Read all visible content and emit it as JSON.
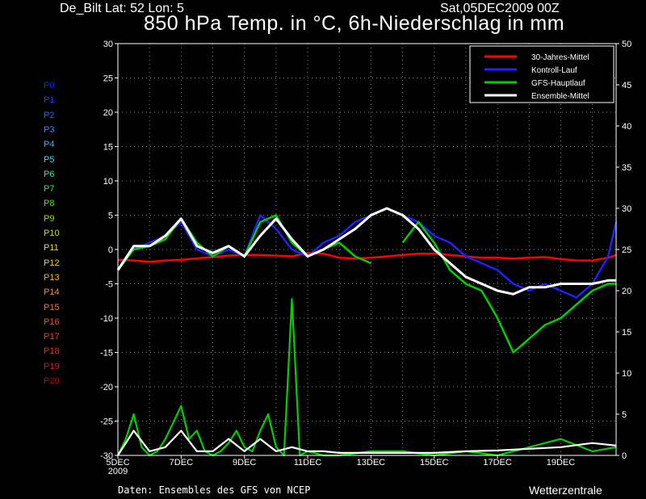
{
  "header": {
    "location": "De_Bilt   Lat: 52 Lon: 5",
    "run_date": "Sat,05DEC2009 00Z",
    "title": "850 hPa Temp. in °C, 6h-Niederschlag in mm"
  },
  "footer": {
    "credit": "Daten: Ensembles des GFS von NCEP",
    "brand": "Wetterzentrale"
  },
  "members": [
    {
      "label": "P0",
      "color": "#2020ff"
    },
    {
      "label": "P1",
      "color": "#2a3cff"
    },
    {
      "label": "P2",
      "color": "#3060ff"
    },
    {
      "label": "P3",
      "color": "#3a8cff"
    },
    {
      "label": "P4",
      "color": "#40b0ff"
    },
    {
      "label": "P5",
      "color": "#40d8e8"
    },
    {
      "label": "P6",
      "color": "#40e0a0"
    },
    {
      "label": "P7",
      "color": "#40e060"
    },
    {
      "label": "P8",
      "color": "#60e040"
    },
    {
      "label": "P9",
      "color": "#90e030"
    },
    {
      "label": "P10",
      "color": "#c0e020"
    },
    {
      "label": "P11",
      "color": "#e0e020"
    },
    {
      "label": "P12",
      "color": "#f0d020"
    },
    {
      "label": "P13",
      "color": "#f0b030"
    },
    {
      "label": "P14",
      "color": "#f09030"
    },
    {
      "label": "P15",
      "color": "#f07030"
    },
    {
      "label": "P16",
      "color": "#e85030"
    },
    {
      "label": "P17",
      "color": "#e04030"
    },
    {
      "label": "P18",
      "color": "#d83020"
    },
    {
      "label": "P19",
      "color": "#c82020"
    },
    {
      "label": "P20",
      "color": "#b01010"
    }
  ],
  "chart_data": {
    "type": "line",
    "x_ticks": [
      "5DEC\n2009",
      "7DEC",
      "9DEC",
      "11DEC",
      "13DEC",
      "15DEC",
      "17DEC",
      "19DEC"
    ],
    "x_tick_days": [
      0,
      2,
      4,
      6,
      8,
      10,
      12,
      14
    ],
    "xlim_days": [
      0,
      15.75
    ],
    "ylim_left": [
      -30,
      30
    ],
    "yticks_left": [
      30,
      25,
      20,
      15,
      10,
      5,
      0,
      -5,
      -10,
      -15,
      -20,
      -25,
      -30
    ],
    "ylim_right": [
      0,
      50
    ],
    "yticks_right": [
      50,
      45,
      40,
      35,
      30,
      25,
      20,
      15,
      10,
      5,
      0
    ],
    "grid": true,
    "legend_position": "top-right",
    "legend": [
      {
        "label": "30-Jahres-Mittel",
        "color": "#ff0000"
      },
      {
        "label": "Kontroll-Lauf",
        "color": "#2020ff"
      },
      {
        "label": "GFS-Hauptlauf",
        "color": "#00d000"
      },
      {
        "label": "Ensemble-Mittel",
        "color": "#ffffff"
      }
    ],
    "temperature_series": [
      {
        "name": "30-Jahres-Mittel",
        "color": "#ff0000",
        "x": [
          0,
          0.5,
          1,
          1.5,
          2,
          2.5,
          3,
          3.5,
          4,
          4.5,
          5,
          5.5,
          6,
          6.5,
          7,
          7.5,
          8,
          8.5,
          9,
          9.5,
          10,
          10.5,
          11,
          11.5,
          12,
          12.5,
          13,
          13.5,
          14,
          14.5,
          15,
          15.5,
          15.75
        ],
        "y": [
          -1.5,
          -1.6,
          -1.8,
          -1.6,
          -1.5,
          -1.3,
          -1.1,
          -0.9,
          -0.8,
          -0.8,
          -0.9,
          -1.0,
          -0.5,
          -0.6,
          -1.2,
          -1.3,
          -1.2,
          -1.0,
          -0.8,
          -0.6,
          -0.6,
          -0.8,
          -1.0,
          -1.2,
          -1.2,
          -1.3,
          -1.2,
          -1.1,
          -1.4,
          -1.6,
          -1.6,
          -1.2,
          -0.8
        ]
      },
      {
        "name": "Kontroll-Lauf",
        "color": "#2020ff",
        "x": [
          0,
          0.5,
          1,
          1.5,
          2,
          2.5,
          3,
          3.5,
          4,
          4.5,
          5,
          5.5,
          6,
          6.5,
          7,
          7.5,
          8,
          8.5,
          9,
          9.5,
          10,
          10.5,
          11,
          11.5,
          12,
          12.5,
          13,
          13.5,
          14,
          14.5,
          15,
          15.5,
          15.75
        ],
        "y": [
          -3,
          0,
          1,
          2,
          4,
          0,
          -1,
          0,
          -1,
          5,
          3,
          0,
          -1,
          1,
          2,
          4,
          5,
          6,
          5,
          4,
          2,
          1,
          -1,
          -2,
          -3,
          -5,
          -6,
          -5,
          -6,
          -7,
          -5,
          -1,
          4
        ]
      },
      {
        "name": "GFS-Hauptlauf",
        "color": "#00d000",
        "x": [
          0,
          0.5,
          1,
          1.5,
          2,
          2.5,
          3,
          3.5,
          4,
          4.5,
          5,
          5.5,
          6,
          6.5,
          7,
          7.5,
          8,
          8.5,
          9,
          9.5,
          10,
          10.5,
          11,
          11.5,
          12,
          12.5,
          13,
          13.5,
          14,
          14.5,
          15,
          15.5,
          15.75
        ],
        "y": [
          -3,
          0,
          0.5,
          1.5,
          4.5,
          1,
          -1,
          0.5,
          -1,
          4,
          5,
          1,
          -1,
          0,
          1,
          -1,
          -2,
          null,
          1,
          4,
          1,
          -3,
          -5,
          -6,
          -10,
          -15,
          -13,
          -11,
          -10,
          -8,
          -6,
          -5,
          -5
        ]
      },
      {
        "name": "Ensemble-Mittel",
        "color": "#ffffff",
        "x": [
          0,
          0.5,
          1,
          1.5,
          2,
          2.5,
          3,
          3.5,
          4,
          4.5,
          5,
          5.5,
          6,
          6.5,
          7,
          7.5,
          8,
          8.5,
          9,
          9.5,
          10,
          10.5,
          11,
          11.5,
          12,
          12.5,
          13,
          13.5,
          14,
          14.5,
          15,
          15.5,
          15.75
        ],
        "y": [
          -3,
          0.5,
          0.5,
          2,
          4.5,
          0.5,
          -0.5,
          0.5,
          -1,
          2,
          4.5,
          1.5,
          -1,
          0,
          1.5,
          3,
          5,
          6,
          5,
          3,
          0,
          -2,
          -4,
          -5,
          -6,
          -6.5,
          -5.5,
          -5.5,
          -5,
          -5,
          -5,
          -4.5,
          -4.5
        ]
      }
    ],
    "precipitation_series": [
      {
        "name": "GFS-Hauptlauf",
        "color": "#00d000",
        "x": [
          0,
          0.25,
          0.5,
          0.75,
          1,
          1.25,
          1.5,
          1.75,
          2,
          2.25,
          2.5,
          2.75,
          3,
          3.25,
          3.5,
          3.75,
          4,
          4.25,
          4.5,
          4.75,
          5,
          5.25,
          5.5,
          5.75,
          6,
          6.5,
          7,
          8,
          9,
          10,
          11,
          12,
          13,
          14,
          15,
          15.75
        ],
        "y": [
          0,
          2,
          5,
          1,
          0,
          0.5,
          2,
          4,
          6,
          2,
          3,
          0.5,
          0,
          0.5,
          1.5,
          3,
          1,
          0.5,
          3,
          5,
          1,
          0,
          19,
          0,
          0.5,
          0,
          0,
          0.5,
          0.5,
          0,
          0.5,
          0,
          1,
          2,
          0.5,
          1
        ]
      },
      {
        "name": "Ensemble-Mittel",
        "color": "#ffffff",
        "x": [
          0,
          0.5,
          1,
          1.5,
          2,
          2.5,
          3,
          3.5,
          4,
          4.5,
          5,
          5.5,
          6,
          6.5,
          7,
          8,
          9,
          10,
          11,
          12,
          13,
          14,
          15,
          15.75
        ],
        "y": [
          0,
          3,
          0.5,
          1,
          3,
          0.5,
          0.5,
          2,
          0.5,
          2,
          0.5,
          1,
          0.5,
          0.5,
          0.3,
          0.3,
          0.3,
          0.3,
          0.5,
          0.6,
          0.8,
          1,
          1.5,
          1.2
        ]
      }
    ]
  }
}
